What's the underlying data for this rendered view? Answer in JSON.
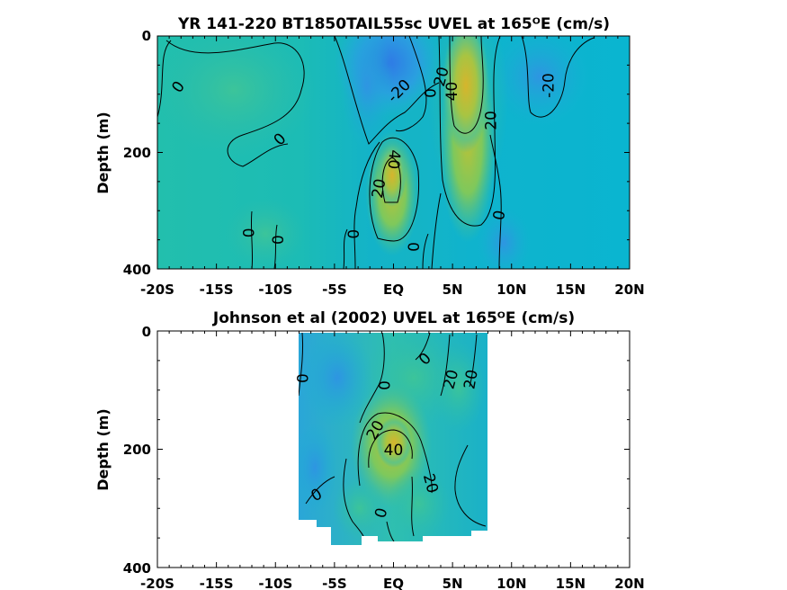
{
  "chart_data": [
    {
      "type": "heatmap",
      "title": "YR 141-220 BT1850TAIL55sc UVEL at 165ᴼE (cm/s)",
      "ylabel": "Depth (m)",
      "xlabel": "",
      "xlim": [
        -20,
        20
      ],
      "ylim": [
        0,
        400
      ],
      "y_reversed": true,
      "x_ticks": [
        "-20S",
        "-15S",
        "-10S",
        "-5S",
        "EQ",
        "5N",
        "10N",
        "15N",
        "20N"
      ],
      "y_ticks": [
        "0",
        "200",
        "400"
      ],
      "contour_labels": [
        {
          "text": "0",
          "lat": -18.2,
          "depth": 88,
          "angle": -55
        },
        {
          "text": "0",
          "lat": -9.6,
          "depth": 178,
          "angle": -45
        },
        {
          "text": "-20",
          "lat": 0.5,
          "depth": 95,
          "angle": -45
        },
        {
          "text": "20",
          "lat": 4.1,
          "depth": 70,
          "angle": -75
        },
        {
          "text": "40",
          "lat": 5.0,
          "depth": 95,
          "angle": -90
        },
        {
          "text": "0",
          "lat": 3.2,
          "depth": 98,
          "angle": -90
        },
        {
          "text": "-20",
          "lat": 13.2,
          "depth": 85,
          "angle": -90
        },
        {
          "text": "20",
          "lat": 8.3,
          "depth": 145,
          "angle": -90
        },
        {
          "text": "40",
          "lat": 0.0,
          "depth": 212,
          "angle": 95
        },
        {
          "text": "20",
          "lat": -1.2,
          "depth": 262,
          "angle": -80
        },
        {
          "text": "0",
          "lat": 9.0,
          "depth": 308,
          "angle": -80
        },
        {
          "text": "0",
          "lat": -12.2,
          "depth": 338,
          "angle": -90
        },
        {
          "text": "0",
          "lat": -9.7,
          "depth": 350,
          "angle": -90
        },
        {
          "text": "0",
          "lat": -3.3,
          "depth": 340,
          "angle": -90
        },
        {
          "text": "0",
          "lat": 1.8,
          "depth": 362,
          "angle": -90
        }
      ]
    },
    {
      "type": "heatmap",
      "title": "Johnson et al (2002) UVEL at 165ᴼE (cm/s)",
      "ylabel": "Depth (m)",
      "xlabel": "",
      "xlim": [
        -20,
        20
      ],
      "ylim": [
        0,
        400
      ],
      "y_reversed": true,
      "data_extent_lat": [
        -8,
        8
      ],
      "x_ticks": [
        "-20S",
        "-15S",
        "-10S",
        "-5S",
        "EQ",
        "5N",
        "10N",
        "15N",
        "20N"
      ],
      "y_ticks": [
        "0",
        "200",
        "400"
      ],
      "contour_labels": [
        {
          "text": "0",
          "lat": -7.6,
          "depth": 80,
          "angle": -90
        },
        {
          "text": "0",
          "lat": -0.7,
          "depth": 92,
          "angle": -90
        },
        {
          "text": "0",
          "lat": 2.7,
          "depth": 48,
          "angle": -45
        },
        {
          "text": "20",
          "lat": 4.9,
          "depth": 82,
          "angle": -75
        },
        {
          "text": "20",
          "lat": 6.6,
          "depth": 82,
          "angle": -80
        },
        {
          "text": "20",
          "lat": -1.5,
          "depth": 168,
          "angle": -60
        },
        {
          "text": "40",
          "lat": 0.0,
          "depth": 202,
          "angle": 0
        },
        {
          "text": "20",
          "lat": 3.1,
          "depth": 258,
          "angle": 75
        },
        {
          "text": "0",
          "lat": -6.5,
          "depth": 278,
          "angle": -30
        },
        {
          "text": "0",
          "lat": -1.0,
          "depth": 308,
          "angle": -75
        }
      ]
    }
  ]
}
